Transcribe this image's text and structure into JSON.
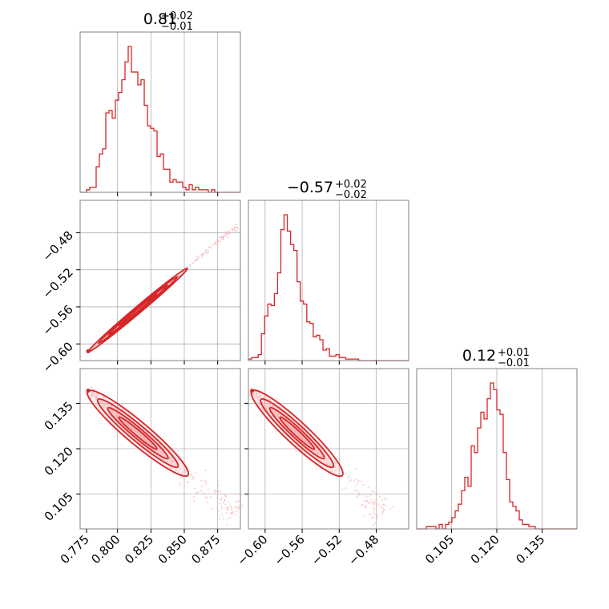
{
  "chart_data": {
    "type": "corner",
    "grid": true,
    "line_color": "#d62728",
    "fill_color": "#f4a3a8",
    "scatter_color": "#f7b6b9",
    "parameters": [
      {
        "title_main": "0.81",
        "title_plus": "+0.02",
        "title_minus": "−0.01",
        "range": [
          0.772,
          0.892
        ],
        "ticks": [
          0.8,
          0.825,
          0.85,
          0.875
        ],
        "tick_labels": [
          "0.800",
          "0.825",
          "0.850",
          "0.875"
        ],
        "extra_tick_label": "0.775"
      },
      {
        "title_main": "−0.57",
        "title_plus": "+0.02",
        "title_minus": "−0.02",
        "range": [
          -0.618,
          -0.445
        ],
        "ticks": [
          -0.6,
          -0.56,
          -0.52,
          -0.48
        ],
        "tick_labels": [
          "−0.60",
          "−0.56",
          "−0.52",
          "−0.48"
        ]
      },
      {
        "title_main": "0.12",
        "title_plus": "+0.01",
        "title_minus": "−0.01",
        "range": [
          0.0935,
          0.1465
        ],
        "ticks": [
          0.105,
          0.12,
          0.135
        ],
        "tick_labels": [
          "0.105",
          "0.120",
          "0.135"
        ]
      }
    ],
    "histograms": [
      {
        "param": 0,
        "bin_start": 0.772,
        "bin_width": 0.0024,
        "counts": [
          0,
          0,
          1,
          2,
          2,
          10,
          15,
          17,
          31,
          32,
          29,
          36,
          39,
          44,
          51,
          57,
          47,
          47,
          42,
          44,
          34,
          26,
          25,
          24,
          14,
          15,
          9,
          9,
          4,
          5,
          4,
          4,
          2,
          1,
          3,
          1,
          2,
          1,
          1,
          1,
          0,
          1,
          0,
          0,
          0,
          0,
          0,
          0,
          0,
          0
        ]
      },
      {
        "param": 1,
        "bin_start": -0.618,
        "bin_width": 0.0035,
        "counts": [
          1,
          2,
          2,
          4,
          18,
          30,
          38,
          37,
          45,
          59,
          88,
          98,
          87,
          78,
          74,
          53,
          40,
          38,
          26,
          25,
          16,
          17,
          14,
          7,
          8,
          3,
          3,
          4,
          2,
          2,
          1,
          1,
          1,
          1,
          0,
          0,
          0,
          0,
          0,
          0,
          0,
          0,
          0,
          0,
          0,
          0,
          0,
          0,
          0,
          0
        ]
      },
      {
        "param": 2,
        "bin_start": 0.0935,
        "bin_width": 0.00106,
        "counts": [
          0,
          0,
          0,
          1,
          1,
          1,
          0,
          2,
          0,
          2,
          3,
          5,
          8,
          11,
          17,
          23,
          19,
          37,
          34,
          45,
          52,
          49,
          58,
          65,
          62,
          53,
          51,
          34,
          22,
          12,
          10,
          8,
          4,
          2,
          2,
          1,
          1,
          0,
          0,
          0,
          0,
          0,
          0,
          0,
          0,
          0,
          0,
          0,
          0,
          0
        ]
      }
    ],
    "joint": [
      {
        "x_param": 0,
        "y_param": 1,
        "trend": [
          [
            0.778,
            -0.608
          ],
          [
            0.8,
            -0.582
          ],
          [
            0.825,
            -0.553
          ],
          [
            0.85,
            -0.522
          ],
          [
            0.875,
            -0.49
          ],
          [
            0.89,
            -0.472
          ]
        ]
      },
      {
        "x_param": 0,
        "y_param": 2,
        "trend": [
          [
            0.778,
            0.1392
          ],
          [
            0.8,
            0.1322
          ],
          [
            0.825,
            0.1225
          ],
          [
            0.85,
            0.112
          ],
          [
            0.875,
            0.103
          ],
          [
            0.889,
            0.098
          ]
        ]
      },
      {
        "x_param": 1,
        "y_param": 2,
        "trend": [
          [
            -0.614,
            0.1392
          ],
          [
            -0.59,
            0.1322
          ],
          [
            -0.56,
            0.1225
          ],
          [
            -0.52,
            0.112
          ],
          [
            -0.49,
            0.103
          ],
          [
            -0.47,
            0.098
          ]
        ]
      }
    ]
  }
}
